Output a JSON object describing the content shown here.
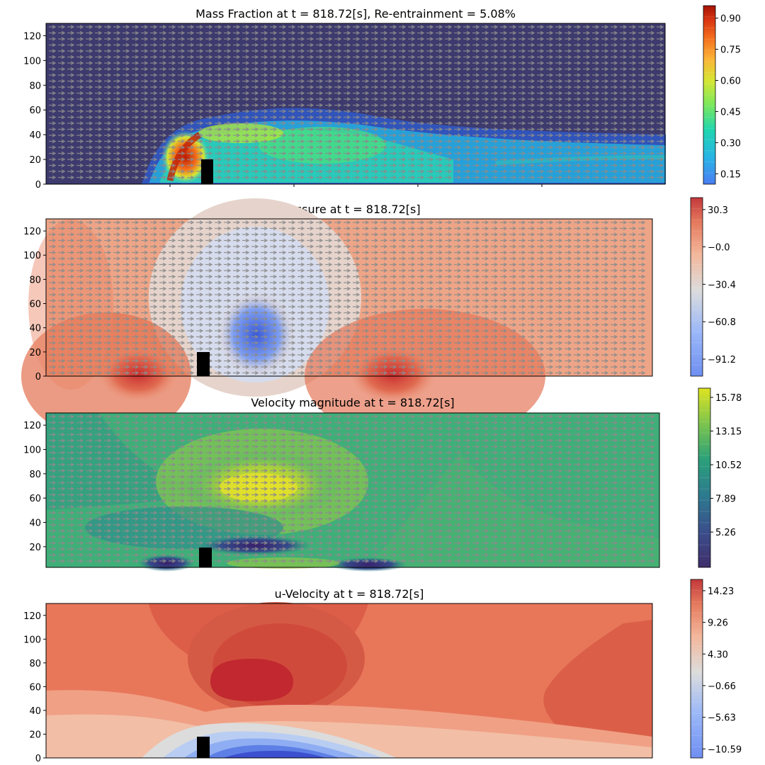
{
  "chart_data": [
    {
      "type": "heatmap",
      "title": "Mass Fraction at t = 818.72[s], Re-entrainment = 5.08%",
      "xlabel": "",
      "ylabel": "",
      "ylim": [
        0,
        130
      ],
      "y_ticks": [
        "0",
        "20",
        "40",
        "60",
        "80",
        "100",
        "120"
      ],
      "x_tick_labels_shown": false,
      "colorbar": {
        "colormap": "turbo",
        "ticks": [
          "0.90",
          "0.75",
          "0.60",
          "0.45",
          "0.30",
          "0.15"
        ],
        "range": [
          0.1,
          0.96
        ]
      },
      "quiver_overlay": true,
      "obstacle": {
        "label": "",
        "height": 20
      }
    },
    {
      "type": "heatmap",
      "title": "Pressure at t = 818.72[s]",
      "xlabel": "",
      "ylabel": "",
      "ylim": [
        0,
        130
      ],
      "y_ticks": [
        "0",
        "20",
        "40",
        "60",
        "80",
        "100",
        "120"
      ],
      "x_tick_labels_shown": false,
      "colorbar": {
        "colormap": "coolwarm",
        "ticks": [
          "30.3",
          "−0.0",
          "−30.4",
          "−60.8",
          "−91.2"
        ],
        "range": [
          -105,
          40
        ]
      },
      "quiver_overlay": true,
      "obstacle": {
        "label": "",
        "height": 20
      }
    },
    {
      "type": "heatmap",
      "title": "Velocity magnitude at t = 818.72[s]",
      "xlabel": "",
      "ylabel": "",
      "ylim": [
        0,
        130
      ],
      "y_ticks": [
        "20",
        "40",
        "60",
        "80",
        "100",
        "120"
      ],
      "x_tick_labels_shown": false,
      "colorbar": {
        "colormap": "viridis",
        "ticks": [
          "15.78",
          "13.15",
          "10.52",
          "7.89",
          "5.26"
        ],
        "range": [
          2.5,
          16.5
        ]
      },
      "quiver_overlay": true,
      "obstacle": {
        "label": "",
        "height": 20
      }
    },
    {
      "type": "heatmap",
      "title": "u-Velocity at t = 818.72[s]",
      "xlabel": "",
      "ylabel": "",
      "ylim": [
        0,
        130
      ],
      "y_ticks": [
        "0",
        "20",
        "40",
        "60",
        "80",
        "100",
        "120"
      ],
      "x_tick_labels_shown": false,
      "colorbar": {
        "colormap": "coolwarm",
        "ticks": [
          "14.23",
          "9.26",
          "4.30",
          "−0.66",
          "−5.63",
          "−10.59"
        ],
        "range": [
          -12,
          16
        ]
      },
      "quiver_overlay": false,
      "obstacle": {
        "label": "",
        "height": 20
      }
    }
  ],
  "colors": {
    "vector_arrows": "#8c8c8c",
    "obstacle": "#000000",
    "axes_frame": "#000000"
  }
}
